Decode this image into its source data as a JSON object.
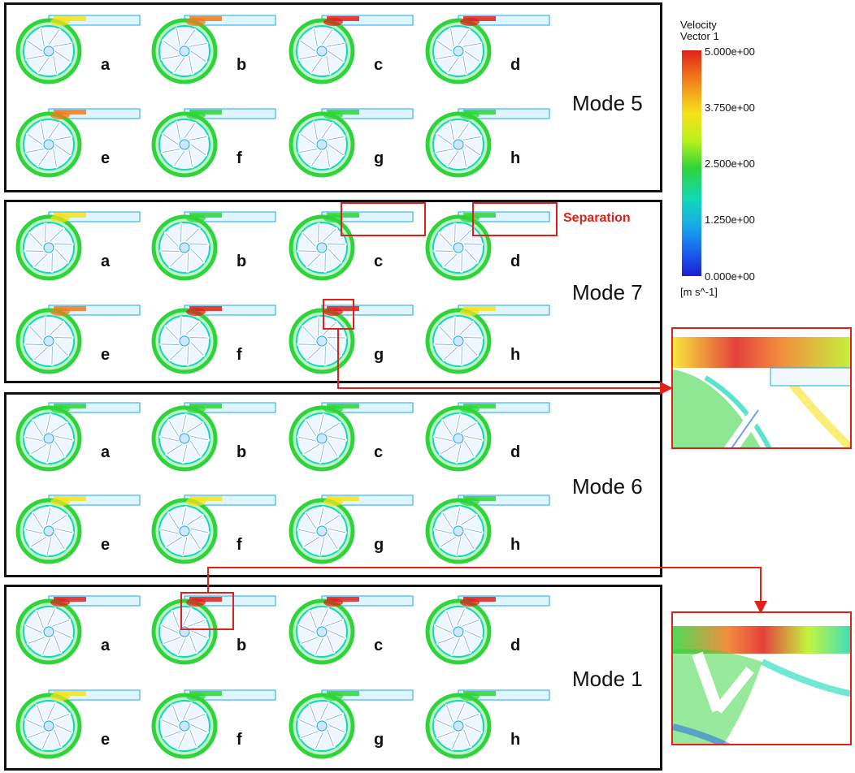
{
  "colors": {
    "accent_red": "#e0201a",
    "frame": "#111111"
  },
  "legend": {
    "title_line1": "Velocity",
    "title_line2": "Vector 1",
    "ticks": [
      "5.000e+00",
      "3.750e+00",
      "2.500e+00",
      "1.250e+00",
      "0.000e+00"
    ],
    "units": "[m s^-1]"
  },
  "panels": [
    {
      "mode": "Mode 5",
      "cells": [
        "a",
        "b",
        "c",
        "d",
        "e",
        "f",
        "g",
        "h"
      ]
    },
    {
      "mode": "Mode 7",
      "cells": [
        "a",
        "b",
        "c",
        "d",
        "e",
        "f",
        "g",
        "h"
      ],
      "annotation": "Separation"
    },
    {
      "mode": "Mode 6",
      "cells": [
        "a",
        "b",
        "c",
        "d",
        "e",
        "f",
        "g",
        "h"
      ]
    },
    {
      "mode": "Mode 1",
      "cells": [
        "a",
        "b",
        "c",
        "d",
        "e",
        "f",
        "g",
        "h"
      ]
    }
  ]
}
